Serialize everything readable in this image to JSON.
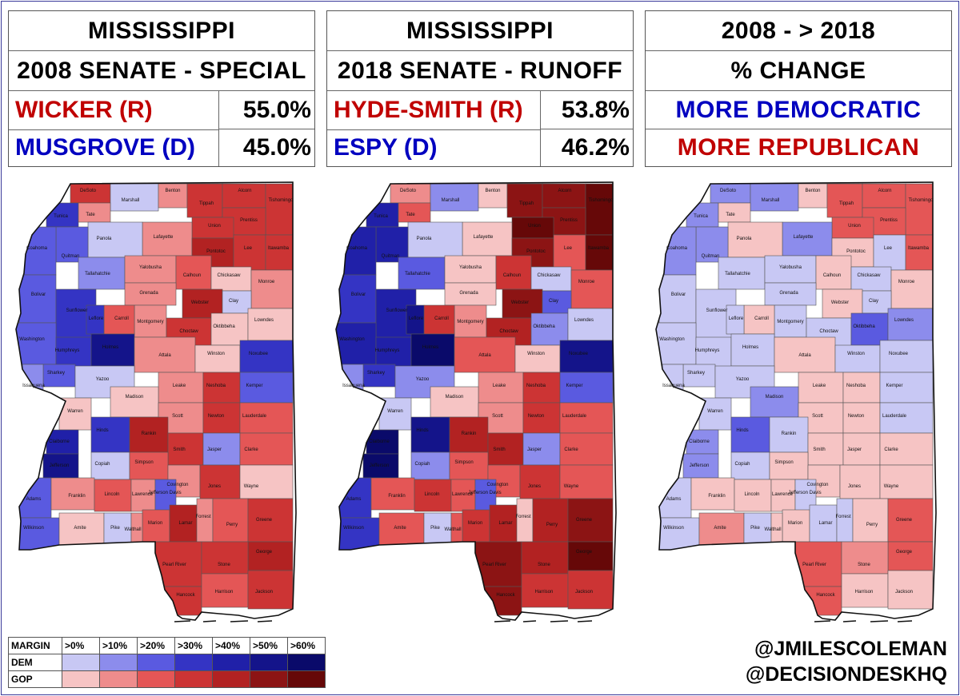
{
  "panels": [
    {
      "line1": "MISSISSIPPI",
      "line2": "2008 SENATE - SPECIAL",
      "rows": [
        {
          "label": "WICKER (R)",
          "value": "55.0%"
        },
        {
          "label": "MUSGROVE (D)",
          "value": "45.0%"
        }
      ]
    },
    {
      "line1": "MISSISSIPPI",
      "line2": "2018 SENATE - RUNOFF",
      "rows": [
        {
          "label": "HYDE-SMITH (R)",
          "value": "53.8%"
        },
        {
          "label": "ESPY (D)",
          "value": "46.2%"
        }
      ]
    },
    {
      "line1": "2008 - > 2018",
      "line2": "% CHANGE",
      "rows": [
        {
          "label": "MORE DEMOCRATIC"
        },
        {
          "label": "MORE REPUBLICAN"
        }
      ]
    }
  ],
  "legend": {
    "header": "MARGIN",
    "bins": [
      ">0%",
      ">10%",
      ">20%",
      ">30%",
      ">40%",
      ">50%",
      ">60%"
    ],
    "dem_label": "DEM",
    "gop_label": "GOP",
    "dem_colors": [
      "#c8c8f4",
      "#8c8cec",
      "#5a5ae0",
      "#3434c4",
      "#2020a8",
      "#14148a",
      "#0a0a6a"
    ],
    "gop_colors": [
      "#f6c4c4",
      "#ee8c8c",
      "#e45656",
      "#cc3434",
      "#b22222",
      "#8c1414",
      "#660808"
    ]
  },
  "credits": {
    "line1": "@JMILESCOLEMAN",
    "line2": "@DECISIONDESKHQ"
  },
  "colors": {
    "republican": "#c00000",
    "democratic": "#0000c0"
  },
  "counties": [
    "DeSoto",
    "Marshall",
    "Benton",
    "Tippah",
    "Alcorn",
    "Tishomingo",
    "Tunica",
    "Tate",
    "Prentiss",
    "Union",
    "Lafayette",
    "Panola",
    "Quitman",
    "Coahoma",
    "Pontotoc",
    "Lee",
    "Itawamba",
    "Tallahatchie",
    "Yalobusha",
    "Calhoun",
    "Chickasaw",
    "Monroe",
    "Bolivar",
    "Sunflower",
    "Grenada",
    "Montgomery",
    "Webster",
    "Clay",
    "Carroll",
    "Leflore",
    "Choctaw",
    "Oktibbeha",
    "Lowndes",
    "Washington",
    "Humphreys",
    "Holmes",
    "Attala",
    "Winston",
    "Noxubee",
    "Sharkey",
    "Issaquena",
    "Yazoo",
    "Leake",
    "Neshoba",
    "Kemper",
    "Madison",
    "Scott",
    "Newton",
    "Lauderdale",
    "Warren",
    "Hinds",
    "Rankin",
    "Smith",
    "Jasper",
    "Clarke",
    "Claiborne",
    "Copiah",
    "Simpson",
    "Jefferson",
    "Covington",
    "Jones",
    "Wayne",
    "Adams",
    "Franklin",
    "Lincoln",
    "Lawrence",
    "Jefferson Davis",
    "Marion",
    "Lamar",
    "Forrest",
    "Perry",
    "Greene",
    "Wilkinson",
    "Amite",
    "Pike",
    "Walthall",
    "George",
    "Pearl River",
    "Stone",
    "Hancock",
    "Harrison",
    "Jackson"
  ]
}
